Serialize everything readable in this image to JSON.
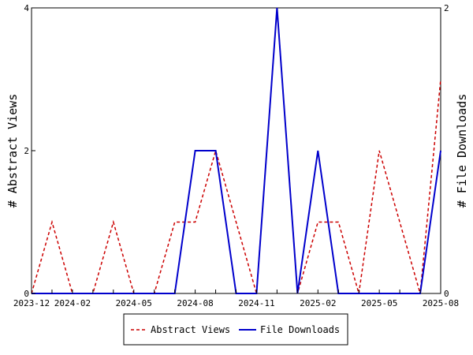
{
  "chart_data": {
    "type": "line",
    "x": [
      "2023-12",
      "2024-01",
      "2024-02",
      "2024-03",
      "2024-04",
      "2024-05",
      "2024-06",
      "2024-07",
      "2024-08",
      "2024-09",
      "2024-10",
      "2024-11",
      "2024-12",
      "2025-01",
      "2025-02",
      "2025-03",
      "2025-04",
      "2025-05",
      "2025-06",
      "2025-07",
      "2025-08"
    ],
    "x_tick_labels": [
      "2023-12",
      "2024-02",
      "2024-05",
      "2024-08",
      "2024-11",
      "2025-02",
      "2025-05",
      "2025-08"
    ],
    "series": [
      {
        "name": "Abstract Views",
        "axis": "left",
        "color": "#cc0000",
        "style": "dashed",
        "values": [
          0,
          1,
          0,
          0,
          1,
          0,
          0,
          1,
          1,
          2,
          1,
          0,
          4,
          0,
          1,
          1,
          0,
          2,
          1,
          0,
          3
        ]
      },
      {
        "name": "File Downloads",
        "axis": "right",
        "color": "#0000cc",
        "style": "solid",
        "values": [
          0,
          0,
          0,
          0,
          0,
          0,
          0,
          0,
          1,
          1,
          0,
          0,
          2,
          0,
          1,
          0,
          0,
          0,
          0,
          0,
          1
        ]
      }
    ],
    "ylabel_left": "# Abstract Views",
    "ylabel_right": "# File Downloads",
    "ylim_left": [
      0,
      4
    ],
    "ylim_right": [
      0,
      2
    ],
    "y_ticks_left": [
      "0",
      "2",
      "4"
    ],
    "y_ticks_right": [
      "0",
      "2"
    ],
    "grid": false,
    "legend_position": "bottom-center"
  }
}
